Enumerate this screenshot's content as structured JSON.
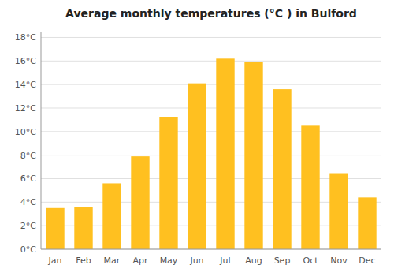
{
  "chart_data": {
    "type": "bar",
    "title": "Average monthly temperatures (°C ) in Bulford",
    "categories": [
      "Jan",
      "Feb",
      "Mar",
      "Apr",
      "May",
      "Jun",
      "Jul",
      "Aug",
      "Sep",
      "Oct",
      "Nov",
      "Dec"
    ],
    "values": [
      3.5,
      3.6,
      5.6,
      7.9,
      11.2,
      14.1,
      16.2,
      15.9,
      13.6,
      10.5,
      6.4,
      4.4
    ],
    "color": "#FFC020",
    "ylim": [
      0,
      18.5
    ],
    "yticks": [
      {
        "value": 0,
        "label": "0°C"
      },
      {
        "value": 2,
        "label": "2°C"
      },
      {
        "value": 4,
        "label": "4°C"
      },
      {
        "value": 6,
        "label": "6°C"
      },
      {
        "value": 8,
        "label": "8°C"
      },
      {
        "value": 10,
        "label": "10°C"
      },
      {
        "value": 12,
        "label": "12°C"
      },
      {
        "value": 14,
        "label": "14°C"
      },
      {
        "value": 16,
        "label": "16°C"
      },
      {
        "value": 18,
        "label": "18°C"
      }
    ],
    "grid": true
  }
}
